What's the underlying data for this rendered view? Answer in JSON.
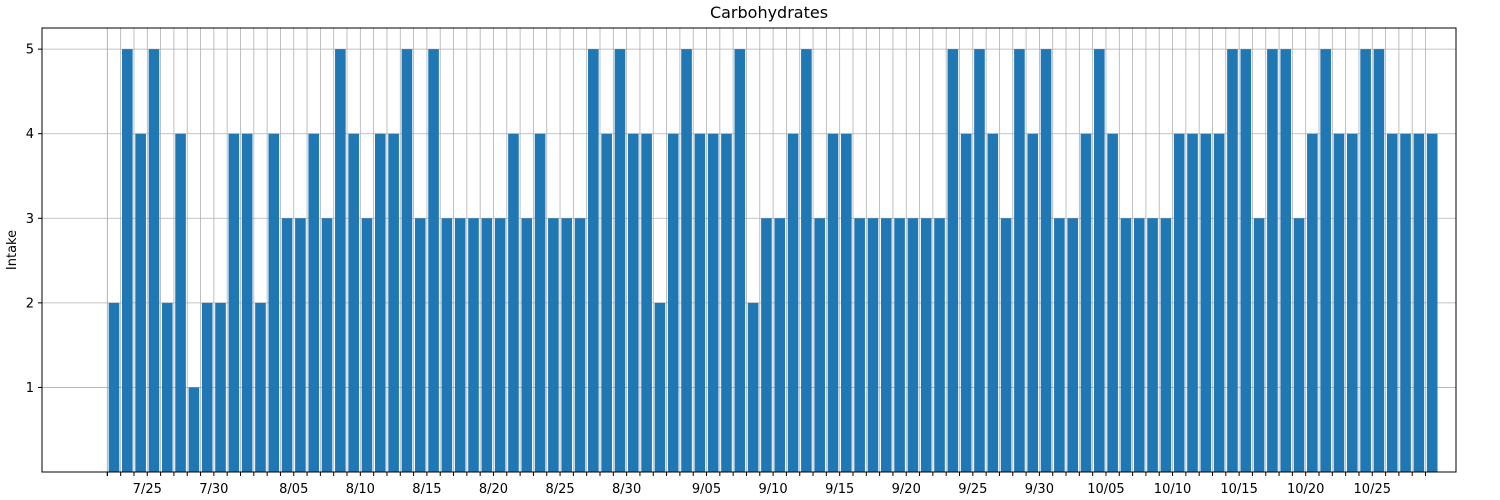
{
  "chart_data": {
    "type": "bar",
    "title": "Carbohydrates",
    "xlabel": "",
    "ylabel": "Intake",
    "ylim": [
      0,
      5.25
    ],
    "yticks": [
      1,
      2,
      3,
      4,
      5
    ],
    "grid": true,
    "bar_color": "#1f77b4",
    "start_date": "2023-07-22",
    "tick_labels": [
      {
        "index": 3,
        "label": "7/25"
      },
      {
        "index": 8,
        "label": "7/30"
      },
      {
        "index": 14,
        "label": "8/05"
      },
      {
        "index": 19,
        "label": "8/10"
      },
      {
        "index": 24,
        "label": "8/15"
      },
      {
        "index": 29,
        "label": "8/20"
      },
      {
        "index": 34,
        "label": "8/25"
      },
      {
        "index": 39,
        "label": "8/30"
      },
      {
        "index": 45,
        "label": "9/05"
      },
      {
        "index": 50,
        "label": "9/10"
      },
      {
        "index": 55,
        "label": "9/15"
      },
      {
        "index": 60,
        "label": "9/20"
      },
      {
        "index": 65,
        "label": "9/25"
      },
      {
        "index": 70,
        "label": "9/30"
      },
      {
        "index": 75,
        "label": "10/05"
      },
      {
        "index": 80,
        "label": "10/10"
      },
      {
        "index": 85,
        "label": "10/15"
      },
      {
        "index": 90,
        "label": "10/20"
      },
      {
        "index": 95,
        "label": "10/25"
      }
    ],
    "values": [
      2,
      5,
      4,
      5,
      2,
      4,
      1,
      2,
      2,
      4,
      4,
      2,
      4,
      3,
      3,
      4,
      3,
      5,
      4,
      3,
      4,
      4,
      5,
      3,
      5,
      3,
      3,
      3,
      3,
      3,
      4,
      3,
      4,
      3,
      3,
      3,
      5,
      4,
      5,
      4,
      4,
      2,
      4,
      5,
      4,
      4,
      4,
      5,
      2,
      3,
      3,
      4,
      5,
      3,
      4,
      4,
      3,
      3,
      3,
      3,
      3,
      3,
      3,
      5,
      4,
      5,
      4,
      3,
      5,
      4,
      5,
      3,
      3,
      4,
      5,
      4,
      3,
      3,
      3,
      3,
      4,
      4,
      4,
      4,
      5,
      5,
      3,
      5,
      5,
      3,
      4,
      5,
      4,
      4,
      5,
      5,
      4,
      4,
      4,
      4
    ]
  }
}
